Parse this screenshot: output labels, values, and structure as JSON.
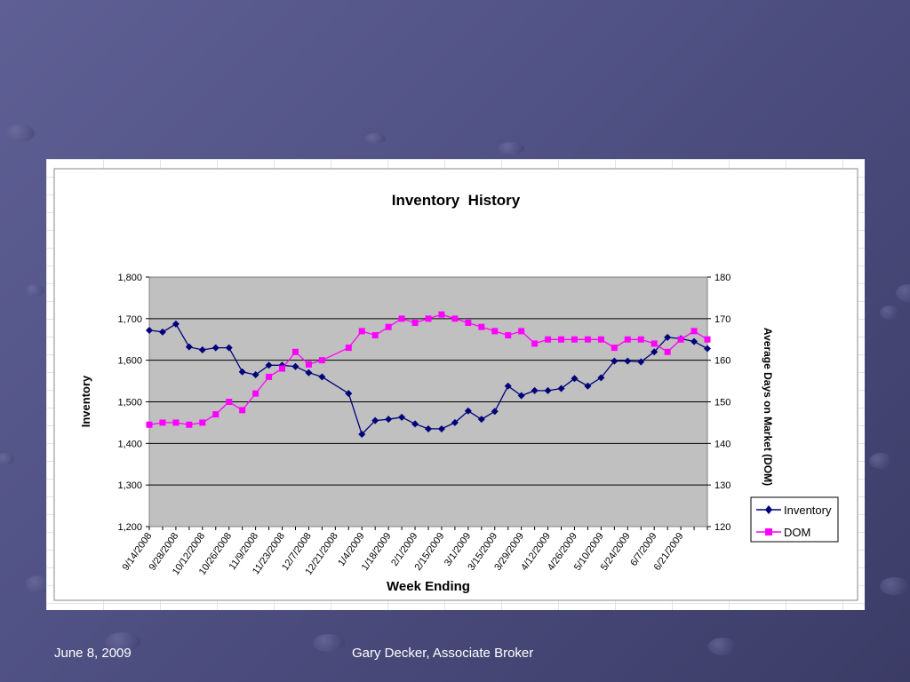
{
  "footer": {
    "date": "June 8, 2009",
    "author": "Gary Decker, Associate Broker"
  },
  "colors": {
    "background": "#55568a",
    "plot_area": "#c0c0c0",
    "inventory_series": "#00007a",
    "dom_series": "#ff00ff"
  },
  "chart_data": {
    "type": "line",
    "title": "Inventory  History",
    "xlabel": "Week Ending",
    "ylabel": "Inventory",
    "y2label": "Average Days on Market (DOM)",
    "ylim": [
      1200,
      1800
    ],
    "y2lim": [
      120,
      180
    ],
    "yticks": [
      "1,200",
      "1,300",
      "1,400",
      "1,500",
      "1,600",
      "1,700",
      "1,800"
    ],
    "y2ticks": [
      "120",
      "130",
      "140",
      "150",
      "160",
      "170",
      "180"
    ],
    "grid": true,
    "legend_position": "right",
    "x_tick_labels": [
      "9/14/2008",
      "9/28/2008",
      "10/12/2008",
      "10/26/2008",
      "11/9/2008",
      "11/23/2008",
      "12/7/2008",
      "12/21/2008",
      "1/4/2009",
      "1/18/2009",
      "2/1/2009",
      "2/15/2009",
      "3/1/2009",
      "3/15/2009",
      "3/29/2009",
      "4/12/2009",
      "4/26/2009",
      "5/10/2009",
      "5/24/2009",
      "6/7/2009",
      "6/21/2009"
    ],
    "series": [
      {
        "name": "Inventory",
        "axis": "left",
        "marker": "diamond",
        "points": [
          {
            "i": 0,
            "v": 1672
          },
          {
            "i": 1,
            "v": 1668
          },
          {
            "i": 2,
            "v": 1687
          },
          {
            "i": 3,
            "v": 1632
          },
          {
            "i": 4,
            "v": 1625
          },
          {
            "i": 5,
            "v": 1630
          },
          {
            "i": 6,
            "v": 1630
          },
          {
            "i": 7,
            "v": 1572
          },
          {
            "i": 8,
            "v": 1565
          },
          {
            "i": 9,
            "v": 1588
          },
          {
            "i": 10,
            "v": 1588
          },
          {
            "i": 11,
            "v": 1585
          },
          {
            "i": 12,
            "v": 1570
          },
          {
            "i": 13,
            "v": 1560
          },
          {
            "i": 15,
            "v": 1520
          },
          {
            "i": 16,
            "v": 1422
          },
          {
            "i": 17,
            "v": 1455
          },
          {
            "i": 18,
            "v": 1458
          },
          {
            "i": 19,
            "v": 1463
          },
          {
            "i": 20,
            "v": 1447
          },
          {
            "i": 21,
            "v": 1435
          },
          {
            "i": 22,
            "v": 1435
          },
          {
            "i": 23,
            "v": 1450
          },
          {
            "i": 24,
            "v": 1478
          },
          {
            "i": 25,
            "v": 1458
          },
          {
            "i": 26,
            "v": 1477
          },
          {
            "i": 27,
            "v": 1538
          },
          {
            "i": 28,
            "v": 1515
          },
          {
            "i": 29,
            "v": 1527
          },
          {
            "i": 30,
            "v": 1527
          },
          {
            "i": 31,
            "v": 1532
          },
          {
            "i": 32,
            "v": 1556
          },
          {
            "i": 33,
            "v": 1538
          },
          {
            "i": 34,
            "v": 1558
          },
          {
            "i": 35,
            "v": 1598
          },
          {
            "i": 36,
            "v": 1598
          },
          {
            "i": 37,
            "v": 1596
          },
          {
            "i": 38,
            "v": 1620
          },
          {
            "i": 39,
            "v": 1655
          },
          {
            "i": 40,
            "v": 1652
          },
          {
            "i": 41,
            "v": 1645
          },
          {
            "i": 42,
            "v": 1628
          }
        ]
      },
      {
        "name": "DOM",
        "axis": "right",
        "marker": "square",
        "points": [
          {
            "i": 0,
            "v": 144.5
          },
          {
            "i": 1,
            "v": 145
          },
          {
            "i": 2,
            "v": 145
          },
          {
            "i": 3,
            "v": 144.5
          },
          {
            "i": 4,
            "v": 145
          },
          {
            "i": 5,
            "v": 147
          },
          {
            "i": 6,
            "v": 150
          },
          {
            "i": 7,
            "v": 148
          },
          {
            "i": 8,
            "v": 152
          },
          {
            "i": 9,
            "v": 156
          },
          {
            "i": 10,
            "v": 158
          },
          {
            "i": 11,
            "v": 162
          },
          {
            "i": 12,
            "v": 159
          },
          {
            "i": 13,
            "v": 160
          },
          {
            "i": 15,
            "v": 163
          },
          {
            "i": 16,
            "v": 167
          },
          {
            "i": 17,
            "v": 166
          },
          {
            "i": 18,
            "v": 168
          },
          {
            "i": 19,
            "v": 170
          },
          {
            "i": 20,
            "v": 169
          },
          {
            "i": 21,
            "v": 170
          },
          {
            "i": 22,
            "v": 171
          },
          {
            "i": 23,
            "v": 170
          },
          {
            "i": 24,
            "v": 169
          },
          {
            "i": 25,
            "v": 168
          },
          {
            "i": 26,
            "v": 167
          },
          {
            "i": 27,
            "v": 166
          },
          {
            "i": 28,
            "v": 167
          },
          {
            "i": 29,
            "v": 164
          },
          {
            "i": 30,
            "v": 165
          },
          {
            "i": 31,
            "v": 165
          },
          {
            "i": 32,
            "v": 165
          },
          {
            "i": 33,
            "v": 165
          },
          {
            "i": 34,
            "v": 165
          },
          {
            "i": 35,
            "v": 163
          },
          {
            "i": 36,
            "v": 165
          },
          {
            "i": 37,
            "v": 165
          },
          {
            "i": 38,
            "v": 164
          },
          {
            "i": 39,
            "v": 162
          },
          {
            "i": 40,
            "v": 165
          },
          {
            "i": 41,
            "v": 167
          },
          {
            "i": 42,
            "v": 165
          }
        ]
      }
    ]
  }
}
